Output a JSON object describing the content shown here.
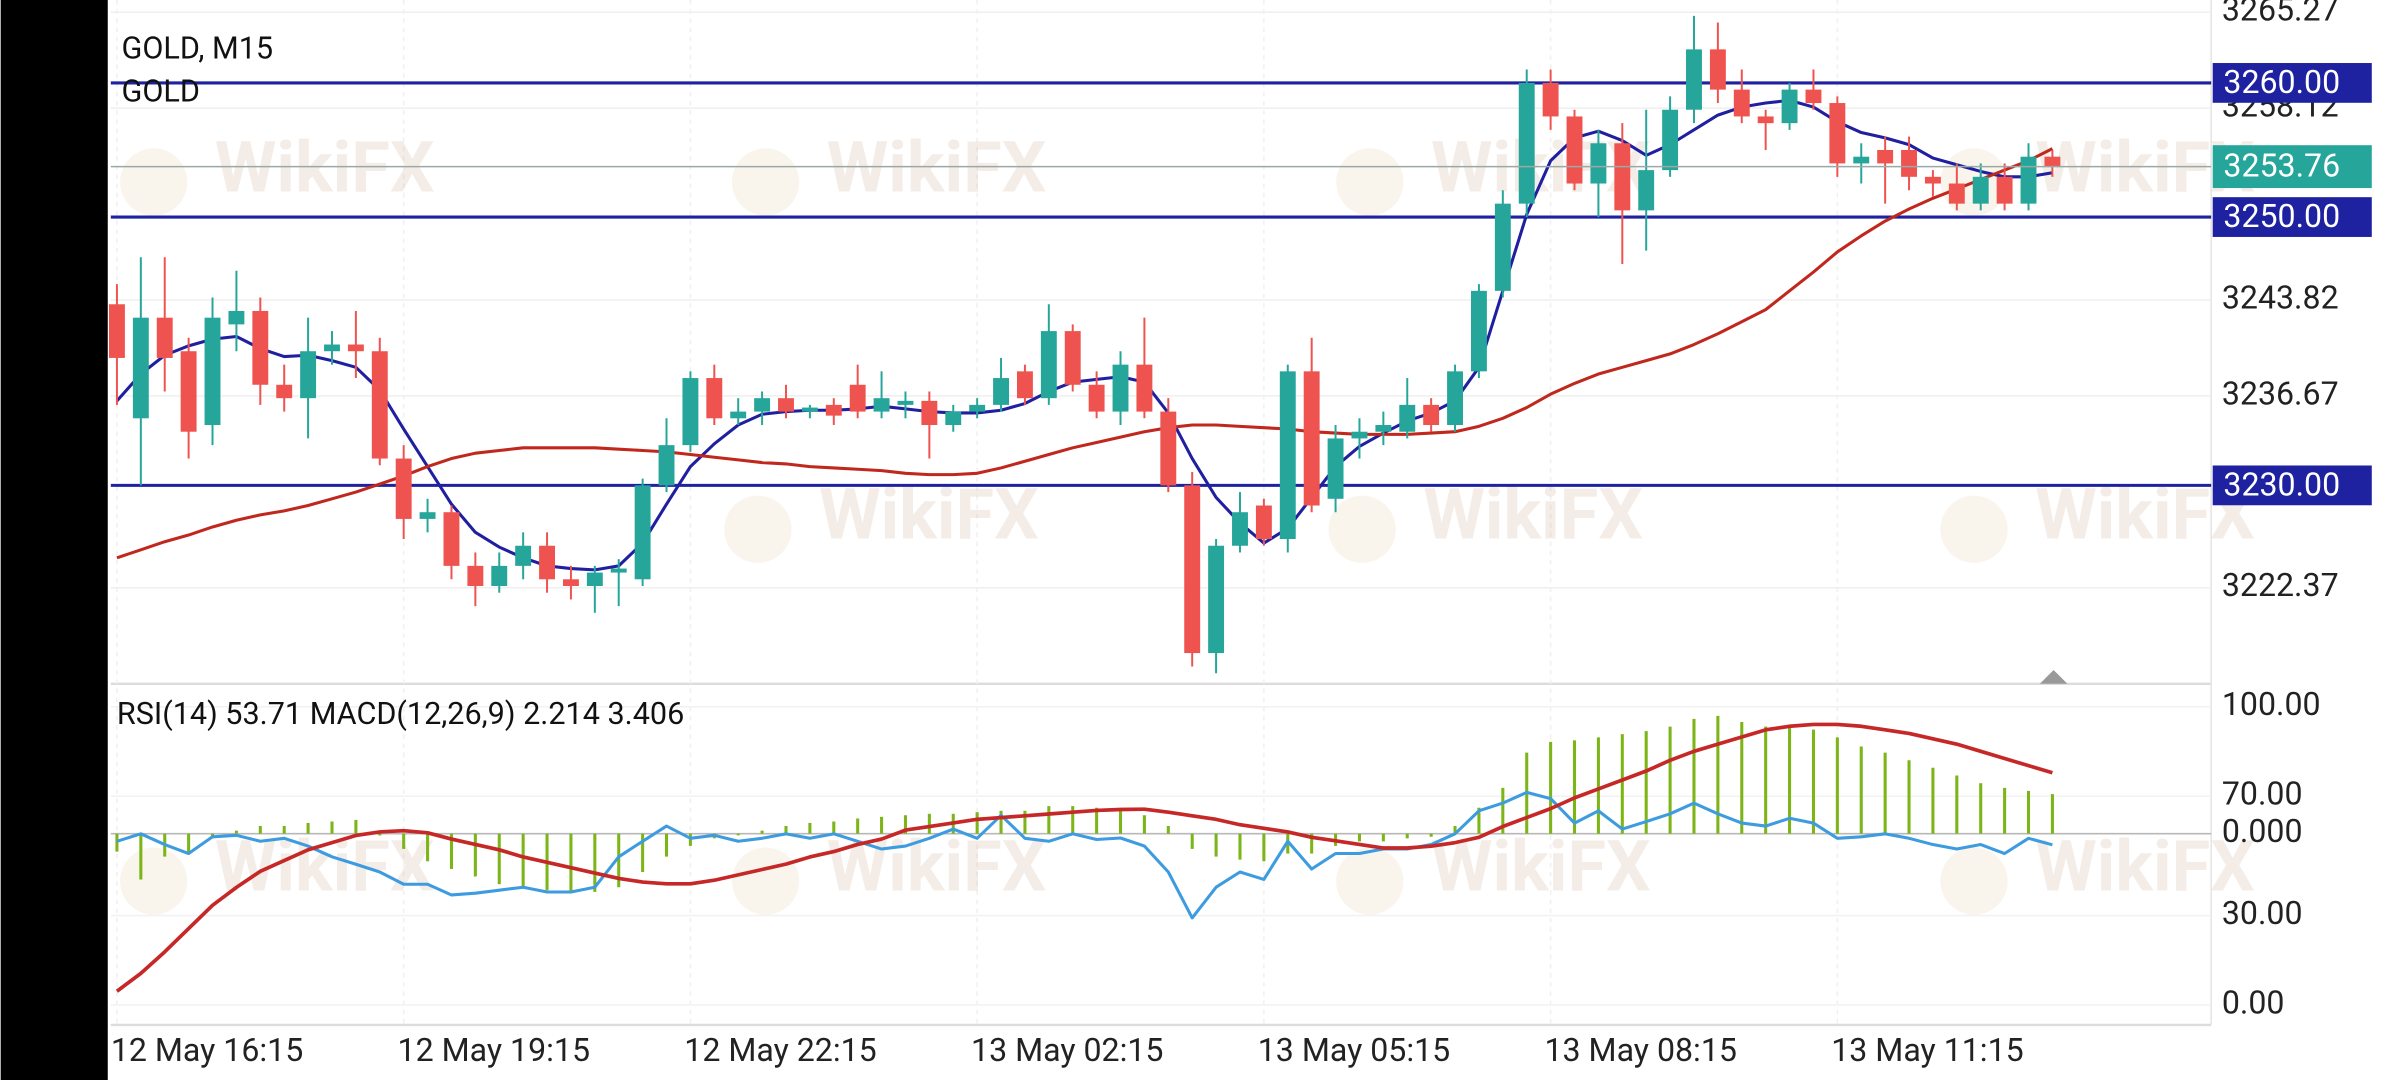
{
  "chart_data": [
    {
      "type": "candlestick",
      "title": "GOLD, M15",
      "subtitle": "GOLD",
      "watermark": "WikiFX",
      "categories": [
        "12 May 16:15",
        null,
        null,
        null,
        null,
        null,
        null,
        null,
        null,
        null,
        null,
        null,
        "12 May 19:15",
        null,
        null,
        null,
        null,
        null,
        null,
        null,
        null,
        null,
        null,
        null,
        "12 May 22:15",
        null,
        null,
        null,
        null,
        null,
        null,
        null,
        null,
        null,
        null,
        null,
        "13 May 02:15",
        null,
        null,
        null,
        null,
        null,
        null,
        null,
        null,
        null,
        null,
        null,
        "13 May 05:15",
        null,
        null,
        null,
        null,
        null,
        null,
        null,
        null,
        null,
        null,
        null,
        "13 May 08:15",
        null,
        null,
        null,
        null,
        null,
        null,
        null,
        null,
        null,
        null,
        null,
        "13 May 11:15",
        null,
        null,
        null,
        null,
        null,
        null,
        null,
        null,
        null
      ],
      "open": [
        3243.5,
        3235,
        3242.5,
        3240,
        3234.5,
        3242,
        3243,
        3237.5,
        3236.5,
        3240,
        3240.5,
        3240,
        3232,
        3227.5,
        3228,
        3224,
        3222.5,
        3224,
        3225.5,
        3223,
        3222.5,
        3223.5,
        3223,
        3230,
        3233,
        3238,
        3235,
        3235.5,
        3236.5,
        3235.5,
        3236,
        3237.5,
        3235.5,
        3236,
        3236.3,
        3234.5,
        3235.5,
        3236,
        3238.5,
        3236.5,
        3241.5,
        3237.5,
        3235.5,
        3239,
        3235.5,
        3230,
        3217.5,
        3225.5,
        3228.5,
        3226,
        3238.5,
        3229,
        3233.5,
        3234,
        3234,
        3236,
        3234.5,
        3238.5,
        3244.5,
        3251,
        3260,
        3257.5,
        3252.5,
        3255.5,
        3250.5,
        3253.5,
        3258,
        3262.5,
        3259.5,
        3257.5,
        3257,
        3259.5,
        3258.5,
        3254,
        3255,
        3255,
        3253,
        3252.5,
        3251,
        3253,
        3251,
        3254.5
      ],
      "high": [
        3245,
        3247,
        3247,
        3241,
        3244,
        3246,
        3244,
        3239,
        3242.5,
        3241.5,
        3243,
        3241,
        3233,
        3229,
        3228.5,
        3225,
        3225,
        3226.5,
        3226.5,
        3224,
        3224,
        3224.5,
        3230.5,
        3235,
        3238.5,
        3239,
        3236.5,
        3237,
        3237.5,
        3236,
        3236.5,
        3239,
        3238.5,
        3237,
        3237,
        3236,
        3236.5,
        3239.5,
        3239,
        3243.5,
        3242,
        3238.5,
        3240,
        3242.5,
        3236.5,
        3231,
        3226,
        3229.5,
        3229,
        3239,
        3241,
        3234.5,
        3235,
        3235.5,
        3238,
        3236.5,
        3239,
        3245,
        3252,
        3261,
        3261,
        3258,
        3256.5,
        3257,
        3258,
        3259,
        3265,
        3264.5,
        3261,
        3258,
        3260,
        3261,
        3259,
        3255.5,
        3256,
        3256,
        3253.5,
        3254,
        3254,
        3254,
        3255.5,
        3255
      ],
      "low": [
        3236,
        3230,
        3237,
        3232,
        3233,
        3240,
        3236,
        3235.5,
        3233.5,
        3239,
        3238,
        3231.5,
        3226,
        3226.5,
        3223,
        3221,
        3222,
        3223,
        3222,
        3221.5,
        3220.5,
        3221,
        3222.5,
        3229.5,
        3232.5,
        3234.5,
        3234.5,
        3234.5,
        3235,
        3235,
        3234.5,
        3235,
        3235,
        3235,
        3232,
        3234,
        3235,
        3235.5,
        3236,
        3236,
        3237,
        3235,
        3234.5,
        3235,
        3229.5,
        3216.5,
        3216,
        3225,
        3225.5,
        3225,
        3228,
        3228,
        3232,
        3233,
        3233.5,
        3234,
        3234,
        3238,
        3244,
        3250,
        3256.5,
        3252,
        3250,
        3246.5,
        3247.5,
        3253,
        3257,
        3258.5,
        3257,
        3255,
        3256.5,
        3258,
        3253,
        3252.5,
        3251,
        3252,
        3251.5,
        3250.5,
        3250.5,
        3250.5,
        3250.5,
        3253
      ],
      "close": [
        3239.5,
        3242.5,
        3239.5,
        3234,
        3242.5,
        3243,
        3237.5,
        3236.5,
        3240,
        3240.5,
        3240,
        3232,
        3227.5,
        3228,
        3224,
        3222.5,
        3224,
        3225.5,
        3223,
        3222.5,
        3223.5,
        3223.8,
        3230,
        3233,
        3238,
        3235,
        3235.5,
        3236.5,
        3235.5,
        3235.8,
        3235.2,
        3235.5,
        3236.5,
        3236.3,
        3234.5,
        3235.5,
        3236,
        3238,
        3236.5,
        3241.5,
        3237.5,
        3235.5,
        3239,
        3235.5,
        3230,
        3217.5,
        3225.5,
        3228,
        3226,
        3238.5,
        3228.5,
        3233.5,
        3234,
        3234.5,
        3236,
        3234.5,
        3238.5,
        3244.5,
        3251,
        3260,
        3257.5,
        3252.5,
        3255.5,
        3250.5,
        3253.5,
        3258,
        3262.5,
        3259.5,
        3257.5,
        3257,
        3259.5,
        3258.5,
        3254,
        3254.5,
        3254,
        3253,
        3252.5,
        3251,
        3253,
        3251,
        3254.5,
        3253.76
      ],
      "up_color": "#26a69a",
      "down_color": "#ef5350",
      "lines": [
        {
          "color": "#1f1fa0",
          "values": [
            3236.3,
            3238.3,
            3239.7,
            3240.4,
            3240.9,
            3241.1,
            3240.2,
            3239.6,
            3239.7,
            3239.3,
            3238.8,
            3237.1,
            3234.2,
            3231.4,
            3228.6,
            3226.5,
            3225.4,
            3224.6,
            3224.0,
            3223.8,
            3223.7,
            3224.0,
            3225.7,
            3228.6,
            3231.4,
            3233.1,
            3234.5,
            3235.3,
            3235.5,
            3235.6,
            3235.6,
            3235.7,
            3235.9,
            3235.7,
            3235.5,
            3235.4,
            3235.4,
            3235.6,
            3236.1,
            3237.0,
            3237.7,
            3237.9,
            3238.1,
            3237.7,
            3235.4,
            3232.0,
            3229.1,
            3227.2,
            3225.7,
            3226.8,
            3229.1,
            3231.4,
            3232.9,
            3233.9,
            3234.8,
            3235.4,
            3236.3,
            3238.8,
            3244.5,
            3250.2,
            3254.2,
            3255.9,
            3256.4,
            3255.7,
            3254.6,
            3255.4,
            3256.5,
            3257.6,
            3258.2,
            3258.5,
            3258.7,
            3258.2,
            3257.1,
            3256.3,
            3255.9,
            3255.4,
            3254.4,
            3253.9,
            3253.4,
            3253.0,
            3253.0,
            3253.3
          ]
        },
        {
          "color": "#c0281e",
          "values": [
            3224.6,
            3225.2,
            3225.8,
            3226.3,
            3226.9,
            3227.4,
            3227.8,
            3228.1,
            3228.5,
            3229.0,
            3229.5,
            3230.1,
            3230.7,
            3231.4,
            3232.0,
            3232.4,
            3232.6,
            3232.8,
            3232.8,
            3232.8,
            3232.8,
            3232.7,
            3232.6,
            3232.5,
            3232.3,
            3232.1,
            3231.9,
            3231.7,
            3231.6,
            3231.4,
            3231.3,
            3231.2,
            3231.1,
            3230.9,
            3230.8,
            3230.8,
            3230.9,
            3231.3,
            3231.8,
            3232.3,
            3232.8,
            3233.2,
            3233.6,
            3234.0,
            3234.3,
            3234.5,
            3234.5,
            3234.4,
            3234.3,
            3234.2,
            3234.0,
            3233.9,
            3233.8,
            3233.8,
            3233.8,
            3233.9,
            3234.0,
            3234.4,
            3235.0,
            3235.8,
            3236.8,
            3237.6,
            3238.3,
            3238.8,
            3239.3,
            3239.8,
            3240.5,
            3241.3,
            3242.2,
            3243.1,
            3244.5,
            3245.9,
            3247.4,
            3248.6,
            3249.7,
            3250.6,
            3251.4,
            3252.1,
            3252.8,
            3253.5,
            3254.2,
            3255.1
          ]
        }
      ],
      "hlines": [
        {
          "value": 3260,
          "label": "3260.00"
        },
        {
          "value": 3250,
          "label": "3250.00"
        },
        {
          "value": 3230,
          "label": "3230.00"
        }
      ],
      "hline_color": "#1e22a0",
      "last_price": 3253.76,
      "last_color": "#26a69a",
      "ylim": [
        3215.21,
        3266.18
      ],
      "yticks": [
        3265.27,
        3258.12,
        3243.82,
        3236.67,
        3222.37
      ],
      "grid": true
    },
    {
      "type": "indicator",
      "title": "RSI(14) 53.71 MACD(12,26,9) 2.214 3.406",
      "rsi": {
        "color": "#3d9be0",
        "values": [
          54.9,
          57.4,
          53.8,
          50.8,
          56.4,
          56.9,
          54.9,
          55.9,
          53.3,
          49.7,
          47.2,
          44.6,
          40.5,
          40.5,
          36.9,
          37.5,
          38.5,
          39.5,
          37.9,
          37.9,
          39.5,
          49.7,
          54.9,
          60.0,
          55.9,
          56.9,
          54.9,
          55.9,
          57.4,
          55.9,
          57.4,
          54.9,
          52.3,
          53.3,
          55.9,
          59.0,
          55.9,
          63.6,
          55.9,
          54.9,
          57.4,
          55.5,
          56.0,
          53.3,
          44.6,
          29.2,
          39.5,
          44.6,
          42.1,
          54.9,
          45.6,
          50.8,
          50.8,
          52.3,
          52.3,
          53.8,
          57.4,
          65.1,
          67.7,
          71.3,
          69.2,
          61.0,
          65.1,
          59.0,
          61.5,
          64.1,
          67.7,
          64.1,
          61.0,
          60.0,
          62.6,
          61.0,
          55.9,
          56.4,
          57.4,
          55.9,
          53.8,
          52.3,
          53.8,
          50.8,
          55.9,
          53.71
        ]
      },
      "macd": {
        "color": "#7cb518",
        "axis": "y2",
        "values": [
          -1.0,
          -2.56,
          -1.28,
          -1.11,
          -0.26,
          0.17,
          0.43,
          0.43,
          0.6,
          0.68,
          0.77,
          -0.1,
          -0.85,
          -1.54,
          -1.97,
          -2.39,
          -2.82,
          -2.99,
          -3.16,
          -3.25,
          -3.25,
          -2.99,
          -2.14,
          -1.28,
          -0.68,
          -0.26,
          -0.09,
          0.17,
          0.43,
          0.6,
          0.68,
          0.85,
          0.94,
          1.03,
          1.11,
          1.11,
          1.2,
          1.28,
          1.28,
          1.54,
          1.54,
          1.45,
          1.28,
          1.03,
          0.43,
          -0.85,
          -1.28,
          -1.45,
          -1.54,
          -1.11,
          -1.11,
          -0.68,
          -0.43,
          -0.43,
          -0.26,
          -0.17,
          0.43,
          1.45,
          2.56,
          4.53,
          5.13,
          5.21,
          5.38,
          5.56,
          5.73,
          5.98,
          6.41,
          6.58,
          6.24,
          5.98,
          5.9,
          5.81,
          5.38,
          4.87,
          4.53,
          4.1,
          3.68,
          3.25,
          2.82,
          2.56,
          2.39,
          2.214
        ]
      },
      "signal": {
        "color": "#c62828",
        "axis": "y2",
        "values": [
          -8.8,
          -7.8,
          -6.6,
          -5.3,
          -4.0,
          -3.0,
          -2.1,
          -1.5,
          -0.9,
          -0.5,
          -0.1,
          0.1,
          0.17,
          0.05,
          -0.3,
          -0.6,
          -0.9,
          -1.3,
          -1.6,
          -1.9,
          -2.2,
          -2.5,
          -2.7,
          -2.8,
          -2.8,
          -2.6,
          -2.3,
          -2.0,
          -1.7,
          -1.3,
          -1.0,
          -0.6,
          -0.3,
          0.2,
          0.4,
          0.6,
          0.8,
          0.9,
          1.0,
          1.1,
          1.2,
          1.3,
          1.35,
          1.37,
          1.2,
          1.0,
          0.8,
          0.5,
          0.3,
          0.1,
          -0.2,
          -0.4,
          -0.6,
          -0.8,
          -0.8,
          -0.7,
          -0.5,
          -0.2,
          0.4,
          0.9,
          1.4,
          2.0,
          2.5,
          3.0,
          3.5,
          4.1,
          4.6,
          5.0,
          5.4,
          5.8,
          6.0,
          6.1,
          6.1,
          6.0,
          5.8,
          5.6,
          5.3,
          5.0,
          4.6,
          4.2,
          3.8,
          3.406
        ]
      },
      "ylim": [
        0,
        100
      ],
      "yticks": [
        {
          "value": 100,
          "label": "100.00"
        },
        {
          "value": 70,
          "label": "70.00"
        },
        {
          "value": 30,
          "label": "30.00"
        },
        {
          "value": 0,
          "label": "0.00"
        }
      ],
      "y2lim": [
        -9.57,
        7.09
      ],
      "y2ticks": [
        {
          "value": 0,
          "label": "0.000"
        }
      ],
      "grid": true
    }
  ]
}
